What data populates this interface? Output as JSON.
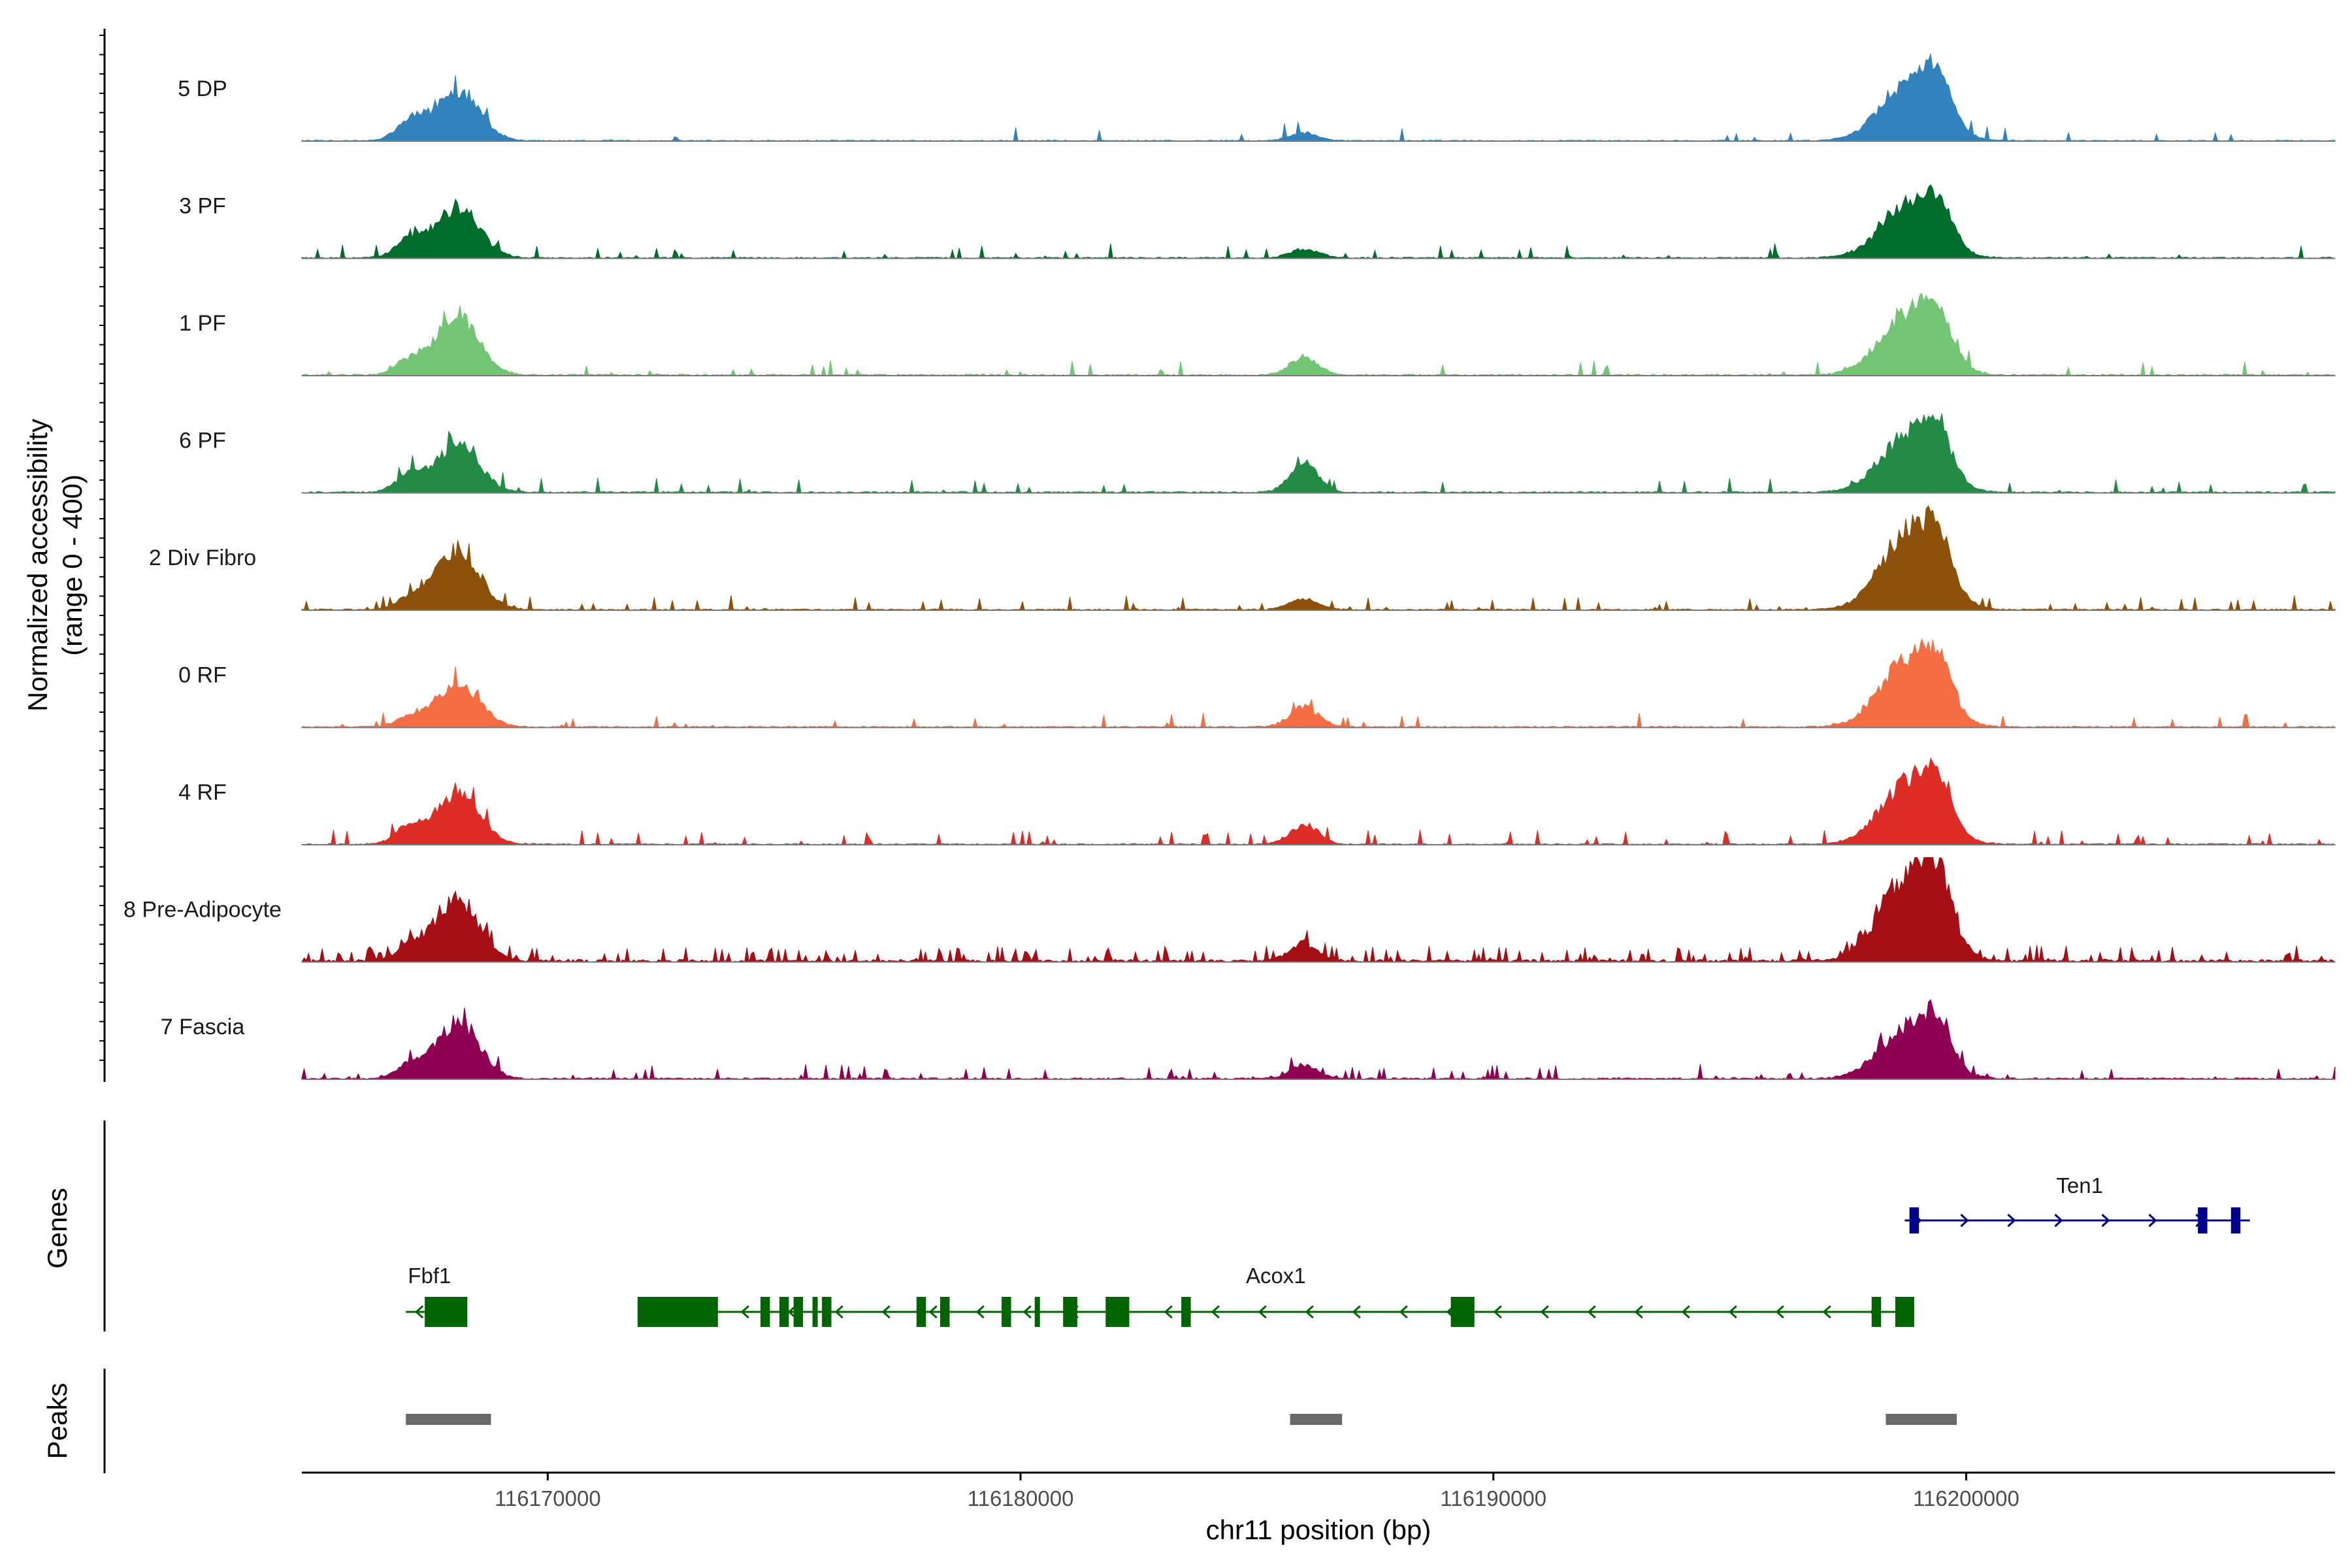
{
  "chart_data": {
    "type": "area",
    "title": "",
    "xlabel": "chr11 position (bp)",
    "ylabel_line1": "Normalized accessibility",
    "ylabel_line2": "(range 0 - 400)",
    "xlim": [
      116164800,
      116207800
    ],
    "ylim": [
      0,
      400
    ],
    "x_ticks": [
      116170000,
      116180000,
      116190000,
      116200000
    ],
    "x_tick_labels": [
      "116170000",
      "116180000",
      "116190000",
      "116200000"
    ],
    "series": [
      {
        "name": "5 DP",
        "color": "#3182bd",
        "noise": 4,
        "sparse": 0.03,
        "peaks": [
          [
            116167100,
            90,
            2
          ],
          [
            116168100,
            230,
            3
          ],
          [
            116186000,
            35,
            2
          ],
          [
            116198800,
            260,
            4
          ],
          [
            116199400,
            160,
            2
          ]
        ]
      },
      {
        "name": "3 PF",
        "color": "#006d2c",
        "noise": 5,
        "sparse": 0.05,
        "peaks": [
          [
            116167100,
            80,
            2
          ],
          [
            116168100,
            230,
            3
          ],
          [
            116186000,
            40,
            2
          ],
          [
            116198800,
            230,
            4
          ],
          [
            116199400,
            150,
            2
          ]
        ]
      },
      {
        "name": "1 PF",
        "color": "#74c476",
        "noise": 6,
        "sparse": 0.06,
        "peaks": [
          [
            116167100,
            70,
            2
          ],
          [
            116168100,
            270,
            3
          ],
          [
            116186000,
            80,
            2
          ],
          [
            116198800,
            280,
            4
          ],
          [
            116199400,
            160,
            2
          ]
        ]
      },
      {
        "name": "6 PF",
        "color": "#238b45",
        "noise": 6,
        "sparse": 0.06,
        "peaks": [
          [
            116167100,
            80,
            2
          ],
          [
            116168100,
            210,
            3
          ],
          [
            116186000,
            130,
            2
          ],
          [
            116198800,
            260,
            4
          ],
          [
            116199400,
            160,
            2
          ]
        ]
      },
      {
        "name": "2 Div Fibro",
        "color": "#8c510a",
        "noise": 5,
        "sparse": 0.07,
        "peaks": [
          [
            116167100,
            50,
            2
          ],
          [
            116168100,
            270,
            3
          ],
          [
            116186000,
            50,
            2
          ],
          [
            116198800,
            340,
            4
          ],
          [
            116199400,
            180,
            2
          ]
        ]
      },
      {
        "name": "0 RF",
        "color": "#f46d43",
        "noise": 5,
        "sparse": 0.05,
        "peaks": [
          [
            116167100,
            40,
            2
          ],
          [
            116168100,
            200,
            3
          ],
          [
            116186000,
            90,
            2
          ],
          [
            116198800,
            300,
            4
          ],
          [
            116199400,
            160,
            2
          ]
        ]
      },
      {
        "name": "4 RF",
        "color": "#de2d26",
        "noise": 5,
        "sparse": 0.08,
        "peaks": [
          [
            116167100,
            80,
            2
          ],
          [
            116168100,
            230,
            3
          ],
          [
            116186000,
            90,
            2
          ],
          [
            116198800,
            280,
            4
          ],
          [
            116199400,
            160,
            2
          ]
        ]
      },
      {
        "name": "8 Pre-Adipocyte",
        "color": "#a50f15",
        "noise": 10,
        "sparse": 0.22,
        "peaks": [
          [
            116167100,
            70,
            2
          ],
          [
            116168100,
            280,
            3
          ],
          [
            116186000,
            80,
            2
          ],
          [
            116198800,
            390,
            4
          ],
          [
            116199400,
            220,
            2
          ]
        ]
      },
      {
        "name": "7 Fascia",
        "color": "#8e0152",
        "noise": 6,
        "sparse": 0.1,
        "peaks": [
          [
            116167100,
            60,
            2
          ],
          [
            116168100,
            250,
            3
          ],
          [
            116186000,
            60,
            2
          ],
          [
            116198800,
            230,
            4
          ],
          [
            116199400,
            130,
            2
          ]
        ]
      }
    ],
    "genes_panel_label": "Genes",
    "genes": [
      {
        "name": "Fbf1",
        "strand": "-",
        "color": "#006400",
        "start": 116167000,
        "end": 116168300,
        "label_x": 116167500,
        "exons": [
          [
            116167400,
            116168300
          ]
        ]
      },
      {
        "name": "Acox1",
        "strand": "-",
        "color": "#006400",
        "start": 116171900,
        "end": 116198900,
        "label_x": 116185400,
        "exons": [
          [
            116171900,
            116173600
          ],
          [
            116174500,
            116174700
          ],
          [
            116174900,
            116175100
          ],
          [
            116175200,
            116175400
          ],
          [
            116175600,
            116175700
          ],
          [
            116175800,
            116176000
          ],
          [
            116177800,
            116178000
          ],
          [
            116178300,
            116178500
          ],
          [
            116179600,
            116179800
          ],
          [
            116180300,
            116180400
          ],
          [
            116180900,
            116181200
          ],
          [
            116181800,
            116182300
          ],
          [
            116183400,
            116183600
          ],
          [
            116189100,
            116189600
          ],
          [
            116198000,
            116198200
          ],
          [
            116198500,
            116198900
          ]
        ]
      },
      {
        "name": "Ten1",
        "strand": "+",
        "color": "#00008b",
        "start": 116198700,
        "end": 116206000,
        "label_x": 116202400,
        "exons": [
          [
            116198800,
            116199000
          ],
          [
            116204900,
            116205100
          ],
          [
            116205600,
            116205800
          ]
        ]
      }
    ],
    "peaks_panel_label": "Peaks",
    "peak_regions": [
      [
        116167000,
        116168800
      ],
      [
        116185700,
        116186800
      ],
      [
        116198300,
        116199800
      ]
    ],
    "peak_color": "#696969"
  }
}
